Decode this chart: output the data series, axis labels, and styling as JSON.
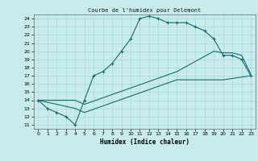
{
  "title": "Courbe de l'humidex pour Delemont",
  "xlabel": "Humidex (Indice chaleur)",
  "bg_color": "#c8ecec",
  "grid_color": "#a8d8d8",
  "line_color": "#1a6b6b",
  "xlim": [
    -0.5,
    23.5
  ],
  "ylim": [
    10.5,
    24.5
  ],
  "yticks": [
    11,
    12,
    13,
    14,
    15,
    16,
    17,
    18,
    19,
    20,
    21,
    22,
    23,
    24
  ],
  "xticks": [
    0,
    1,
    2,
    3,
    4,
    5,
    6,
    7,
    8,
    9,
    10,
    11,
    12,
    13,
    14,
    15,
    16,
    17,
    18,
    19,
    20,
    21,
    22,
    23
  ],
  "line1_x": [
    0,
    1,
    2,
    3,
    4,
    5,
    6,
    7,
    8,
    9,
    10,
    11,
    12,
    13,
    14,
    15,
    16,
    17,
    18,
    19,
    20,
    21,
    22,
    23
  ],
  "line1_y": [
    14,
    13,
    12.5,
    12,
    11,
    14,
    17,
    17.5,
    18.5,
    20,
    21.5,
    24,
    24.3,
    24,
    23.5,
    23.5,
    23.5,
    23,
    22.5,
    21.5,
    19.5,
    19.5,
    19,
    17
  ],
  "line2_x": [
    0,
    4,
    5,
    10,
    15,
    19,
    20,
    21,
    22,
    23
  ],
  "line2_y": [
    14,
    14,
    13.5,
    15.5,
    17.5,
    20,
    19.8,
    19.8,
    19.5,
    17.2
  ],
  "line3_x": [
    0,
    4,
    5,
    10,
    15,
    20,
    23
  ],
  "line3_y": [
    14,
    13,
    12.5,
    14.5,
    16.5,
    16.5,
    17
  ]
}
